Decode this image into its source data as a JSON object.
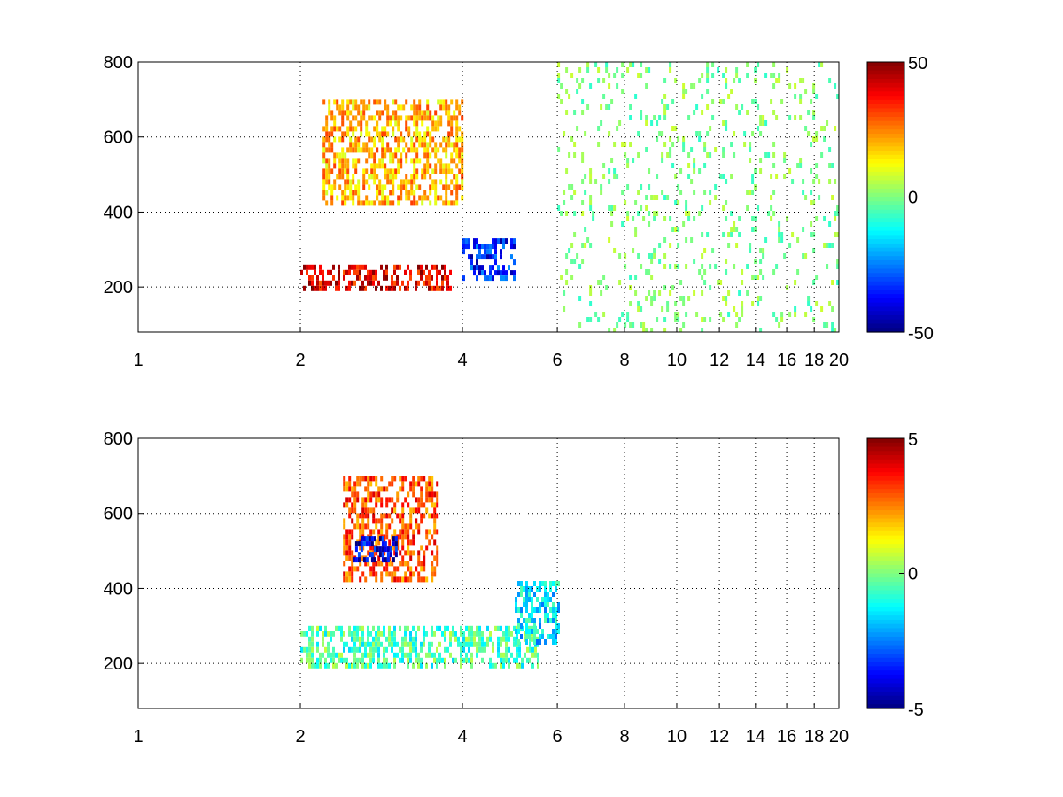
{
  "chart_data": [
    {
      "type": "heatmap",
      "title": "",
      "xlabel": "",
      "ylabel": "",
      "grid": true,
      "grid_style": "dotted",
      "x_scale": "log",
      "xlim": [
        1,
        20
      ],
      "ylim": [
        80,
        800
      ],
      "x_ticks": [
        1,
        2,
        4,
        6,
        8,
        10,
        12,
        14,
        16,
        18,
        20
      ],
      "x_tick_labels": [
        "1",
        "2",
        "4",
        "6",
        "8",
        "10",
        "12",
        "14",
        "16",
        "18",
        "20"
      ],
      "y_ticks": [
        200,
        400,
        600,
        800
      ],
      "y_tick_labels": [
        "200",
        "400",
        "600",
        "800"
      ],
      "colormap": "jet",
      "colorbar": {
        "min": -50,
        "max": 50,
        "ticks": [
          50,
          0,
          -50
        ],
        "tick_labels": [
          "50",
          "0",
          "-50"
        ],
        "placement": "right"
      },
      "features": [
        {
          "description": "strong positive band",
          "x_range": [
            2.0,
            3.8
          ],
          "y_range": [
            200,
            260
          ],
          "value": 40
        },
        {
          "description": "positive upper region",
          "x_range": [
            2.2,
            4.0
          ],
          "y_range": [
            420,
            700
          ],
          "value": 20
        },
        {
          "description": "negative patch",
          "x_range": [
            4.0,
            5.0
          ],
          "y_range": [
            230,
            330
          ],
          "value": -35
        },
        {
          "description": "sparse scattered values near zero",
          "x_range": [
            6.0,
            20.0
          ],
          "y_range": [
            80,
            800
          ],
          "value": 0
        }
      ]
    },
    {
      "type": "heatmap",
      "title": "",
      "xlabel": "",
      "ylabel": "",
      "grid": true,
      "grid_style": "dotted",
      "x_scale": "log",
      "xlim": [
        1,
        20
      ],
      "ylim": [
        80,
        800
      ],
      "x_ticks": [
        1,
        2,
        4,
        6,
        8,
        10,
        12,
        14,
        16,
        18,
        20
      ],
      "x_tick_labels": [
        "1",
        "2",
        "4",
        "6",
        "8",
        "10",
        "12",
        "14",
        "16",
        "18",
        "20"
      ],
      "y_ticks": [
        200,
        400,
        600,
        800
      ],
      "y_tick_labels": [
        "200",
        "400",
        "600",
        "800"
      ],
      "colormap": "jet",
      "colorbar": {
        "min": -5,
        "max": 5,
        "ticks": [
          5,
          0,
          -5
        ],
        "tick_labels": [
          "5",
          "0",
          "-5"
        ],
        "placement": "right"
      },
      "features": [
        {
          "description": "positive upper patch",
          "x_range": [
            2.4,
            3.6
          ],
          "y_range": [
            420,
            700
          ],
          "value": 3
        },
        {
          "description": "negative patch",
          "x_range": [
            2.5,
            3.0
          ],
          "y_range": [
            480,
            540
          ],
          "value": -4
        },
        {
          "description": "slightly negative lower band",
          "x_range": [
            2.0,
            5.5
          ],
          "y_range": [
            190,
            300
          ],
          "value": -0.5
        },
        {
          "description": "small negative patch",
          "x_range": [
            5.0,
            6.0
          ],
          "y_range": [
            260,
            420
          ],
          "value": -1.5
        }
      ]
    }
  ]
}
